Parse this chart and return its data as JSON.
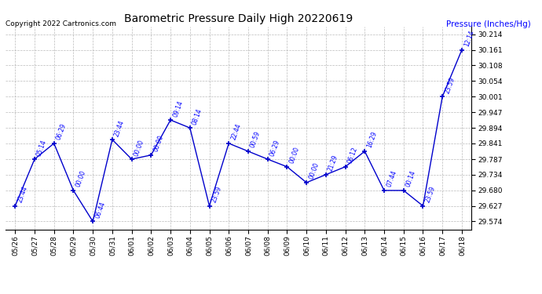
{
  "title": "Barometric Pressure Daily High 20220619",
  "copyright": "Copyright 2022 Cartronics.com",
  "ylabel": "Pressure (Inches/Hg)",
  "x_labels": [
    "05/26",
    "05/27",
    "05/28",
    "05/29",
    "05/30",
    "05/31",
    "06/01",
    "06/02",
    "06/03",
    "06/04",
    "06/05",
    "06/06",
    "06/07",
    "06/08",
    "06/09",
    "06/10",
    "06/11",
    "06/12",
    "06/13",
    "06/14",
    "06/15",
    "06/16",
    "06/17",
    "06/18"
  ],
  "y_values": [
    29.627,
    29.787,
    29.841,
    29.68,
    29.574,
    29.854,
    29.787,
    29.801,
    29.921,
    29.894,
    29.627,
    29.841,
    29.814,
    29.787,
    29.761,
    29.707,
    29.734,
    29.761,
    29.814,
    29.68,
    29.68,
    29.627,
    30.001,
    30.161
  ],
  "time_labels": [
    "23:44",
    "05:14",
    "06:29",
    "00:00",
    "06:44",
    "23:44",
    "00:00",
    "00:00",
    "09:14",
    "08:14",
    "23:59",
    "22:44",
    "00:59",
    "06:29",
    "00:00",
    "00:00",
    "21:29",
    "06:12",
    "16:29",
    "07:44",
    "00:14",
    "23:59",
    "23:59",
    "12:14"
  ],
  "line_color": "#0000cc",
  "marker_color": "#0000cc",
  "background_color": "#ffffff",
  "grid_color": "#aaaaaa",
  "title_color": "#000000",
  "label_color": "#0000ff",
  "copyright_color": "#000000",
  "ylim_min": 29.547,
  "ylim_max": 30.241,
  "yticks": [
    29.574,
    29.627,
    29.68,
    29.734,
    29.787,
    29.841,
    29.894,
    29.947,
    30.001,
    30.054,
    30.108,
    30.161,
    30.214
  ]
}
